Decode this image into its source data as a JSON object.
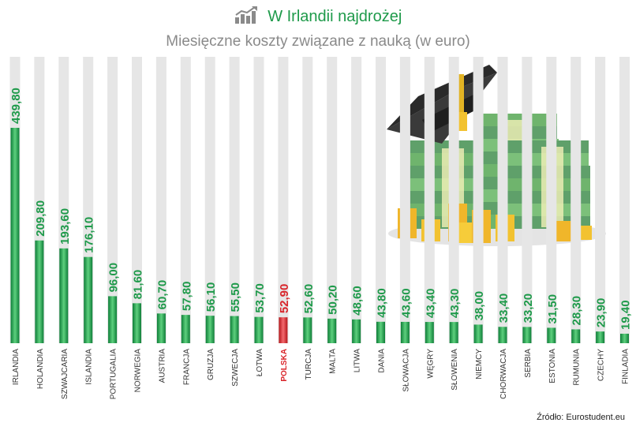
{
  "header": {
    "title": "W Irlandii najdrożej",
    "subtitle": "Miesięczne koszty związane z nauką (w euro)"
  },
  "source": "Źródło: Eurostudent.eu",
  "icons": {
    "title_icon": "rising-bar-chart-icon",
    "illustration": "graduation-cap-on-money-stacks"
  },
  "colors": {
    "accent": "#1e9a4a",
    "highlight": "#d9262b",
    "bar_bg": "#e6e6e6"
  },
  "chart_data": {
    "type": "bar",
    "title": "Miesięczne koszty związane z nauką (w euro)",
    "categories": [
      "IRLANDIA",
      "HOLANDIA",
      "SZWAJCARIA",
      "ISLANDIA",
      "PORTUGALIA",
      "NORWEGIA",
      "AUSTRIA",
      "FRANCJA",
      "GRUZJA",
      "SZWECJA",
      "ŁOTWA",
      "POLSKA",
      "TURCJA",
      "MALTA",
      "LITWA",
      "DANIA",
      "SŁOWACJA",
      "WĘGRY",
      "SŁOWENIA",
      "NIEMCY",
      "CHORWACJA",
      "SERBIA",
      "ESTONIA",
      "RUMUNIA",
      "CZECHY",
      "FINLADIA"
    ],
    "values": [
      439.8,
      209.8,
      193.6,
      176.1,
      96.0,
      81.6,
      60.7,
      57.8,
      56.1,
      55.5,
      53.7,
      52.9,
      52.6,
      50.2,
      48.6,
      43.8,
      43.6,
      43.4,
      43.3,
      38.0,
      33.4,
      33.2,
      31.5,
      28.3,
      23.9,
      19.4
    ],
    "labels": [
      "439,80",
      "209,80",
      "193,60",
      "176,10",
      "96,00",
      "81,60",
      "60,70",
      "57,80",
      "56,10",
      "55,50",
      "53,70",
      "52,90",
      "52,60",
      "50,20",
      "48,60",
      "43,80",
      "43,60",
      "43,40",
      "43,30",
      "38,00",
      "33,40",
      "33,20",
      "31,50",
      "28,30",
      "23,90",
      "19,40"
    ],
    "highlight": "POLSKA",
    "xlabel": "",
    "ylabel": "",
    "ylim": [
      0,
      439.8
    ],
    "grid": false,
    "orientation": "vertical"
  }
}
